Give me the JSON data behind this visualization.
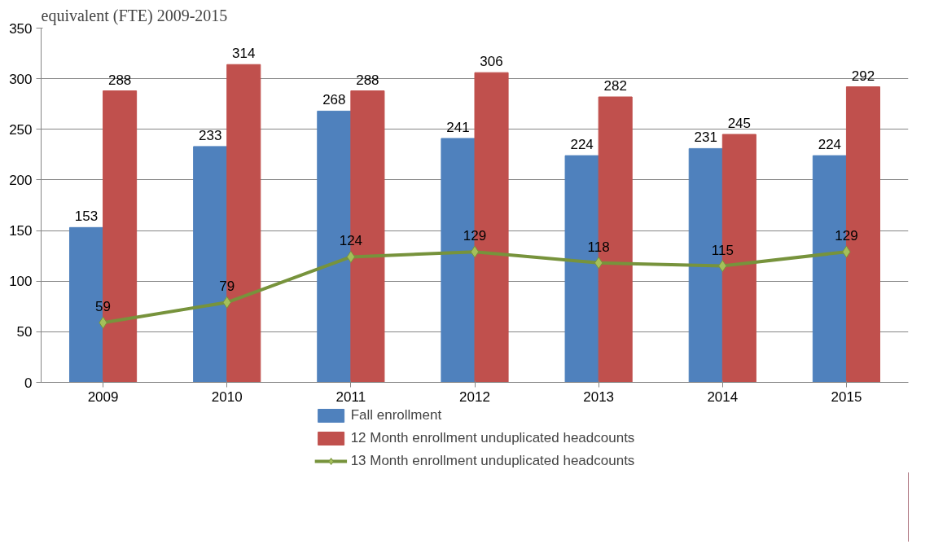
{
  "chart_data": {
    "type": "bar",
    "title": "equivalent (FTE) 2009-2015",
    "categories": [
      "2009",
      "2010",
      "2011",
      "2012",
      "2013",
      "2014",
      "2015"
    ],
    "series": [
      {
        "name": "Fall enrollment",
        "color": "#4f81bd",
        "values": [
          153,
          233,
          268,
          241,
          224,
          231,
          224
        ]
      },
      {
        "name": "12 Month enrollment unduplicated headcounts",
        "color": "#c0504d",
        "values": [
          288,
          314,
          288,
          306,
          282,
          245,
          292
        ]
      },
      {
        "name": "13 Month enrollment unduplicated headcounts",
        "type": "line",
        "color": "#77933c",
        "values": [
          59,
          79,
          124,
          129,
          118,
          115,
          129
        ]
      }
    ],
    "ylim": [
      0,
      350
    ],
    "yticks": [
      0,
      50,
      100,
      150,
      200,
      250,
      300,
      350
    ],
    "grid": "y",
    "legend": "bottom",
    "marker": "diamond",
    "data_labels": true
  }
}
